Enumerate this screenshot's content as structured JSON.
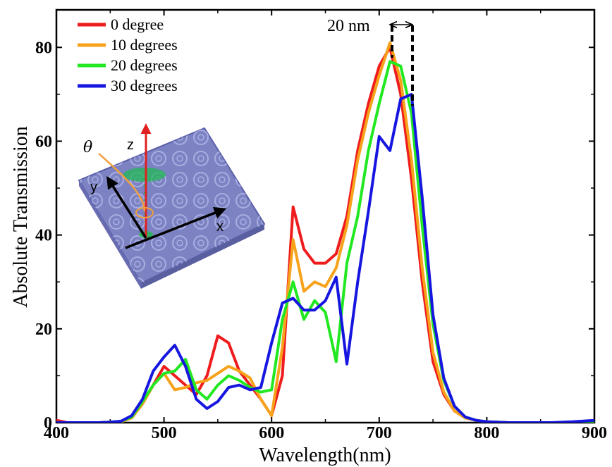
{
  "chart_data": {
    "type": "line",
    "title": "",
    "xlabel": "Wavelength(nm)",
    "ylabel": "Absolute Transmission",
    "xlim": [
      400,
      900
    ],
    "ylim": [
      0,
      88
    ],
    "xticks": [
      400,
      500,
      600,
      700,
      800,
      900
    ],
    "yticks": [
      0,
      20,
      40,
      60,
      80
    ],
    "grid": false,
    "legend_position": "top-left",
    "series": [
      {
        "name": "0 degree",
        "color": "#ee1c1c",
        "x": [
          400,
          410,
          420,
          430,
          440,
          450,
          460,
          470,
          480,
          490,
          500,
          510,
          520,
          530,
          540,
          550,
          560,
          570,
          580,
          590,
          600,
          610,
          620,
          630,
          640,
          650,
          660,
          670,
          680,
          690,
          700,
          710,
          720,
          730,
          740,
          750,
          760,
          770,
          780,
          790,
          800,
          820,
          840,
          860,
          880,
          900
        ],
        "y": [
          0.5,
          0,
          0,
          0,
          0,
          0.1,
          0.2,
          1,
          4,
          8,
          12,
          10,
          8,
          6,
          10,
          18.5,
          17,
          11,
          8,
          5,
          1.5,
          10,
          46,
          37,
          34,
          34,
          36,
          44,
          58,
          68,
          76,
          80,
          70,
          52,
          30,
          13,
          6,
          2.5,
          1,
          0.5,
          0.2,
          0,
          0,
          0,
          0,
          0.2
        ]
      },
      {
        "name": "10 degrees",
        "color": "#f7a21b",
        "x": [
          400,
          410,
          420,
          430,
          440,
          450,
          460,
          470,
          480,
          490,
          500,
          510,
          520,
          530,
          540,
          550,
          560,
          570,
          580,
          590,
          600,
          610,
          620,
          630,
          640,
          650,
          660,
          670,
          680,
          690,
          700,
          710,
          720,
          730,
          740,
          750,
          760,
          770,
          780,
          790,
          800,
          820,
          840,
          860,
          880,
          900
        ],
        "y": [
          0,
          0,
          0,
          0,
          0,
          0.1,
          0.2,
          1,
          4,
          8,
          10.5,
          7,
          7.5,
          8.5,
          9,
          10.5,
          12,
          11,
          9.5,
          5,
          1.5,
          16,
          39,
          28,
          30,
          29,
          33,
          42,
          56,
          66,
          74,
          81,
          73,
          56,
          33,
          15,
          6.5,
          2.5,
          1,
          0.5,
          0.2,
          0,
          0,
          0,
          0,
          0.2
        ]
      },
      {
        "name": "20 degrees",
        "color": "#22e822",
        "x": [
          400,
          410,
          420,
          430,
          440,
          450,
          460,
          470,
          480,
          490,
          500,
          510,
          520,
          530,
          540,
          550,
          560,
          570,
          580,
          590,
          600,
          610,
          620,
          630,
          640,
          650,
          660,
          670,
          680,
          690,
          700,
          710,
          720,
          730,
          740,
          750,
          760,
          770,
          780,
          790,
          800,
          820,
          840,
          860,
          880,
          900
        ],
        "y": [
          0,
          0,
          0,
          0,
          0,
          0.1,
          0.3,
          1.2,
          4.5,
          8,
          10.5,
          11,
          13.5,
          7,
          5,
          8,
          10,
          9,
          7.5,
          6.5,
          7,
          22,
          30,
          22,
          26,
          23.5,
          13,
          34,
          44,
          58,
          68,
          77,
          76,
          66,
          42,
          21,
          9,
          3.5,
          1.2,
          0.5,
          0.2,
          0,
          0,
          0,
          0,
          0.2
        ]
      },
      {
        "name": "30 degrees",
        "color": "#1616e0",
        "x": [
          400,
          410,
          420,
          430,
          440,
          450,
          460,
          470,
          480,
          490,
          500,
          510,
          520,
          530,
          540,
          550,
          560,
          570,
          580,
          590,
          600,
          610,
          620,
          630,
          640,
          650,
          660,
          670,
          680,
          690,
          700,
          710,
          720,
          730,
          740,
          750,
          760,
          770,
          780,
          790,
          800,
          820,
          840,
          860,
          880,
          900
        ],
        "y": [
          0,
          0,
          0,
          0,
          0,
          0.1,
          0.3,
          1.5,
          5,
          11,
          14,
          16.5,
          12,
          5,
          3,
          4.5,
          7.5,
          8,
          7,
          7.5,
          17,
          25.5,
          26.5,
          24,
          24,
          26,
          31,
          12.5,
          30,
          45,
          61,
          58,
          69,
          70,
          48,
          23,
          9.5,
          3.5,
          1.2,
          0.5,
          0.2,
          0,
          0,
          0,
          0.2,
          0.5
        ]
      }
    ],
    "annotations": [
      {
        "text": "20 nm",
        "type": "double-arrow",
        "from_x": 710,
        "to_x": 730
      }
    ],
    "inset": {
      "labels": {
        "theta": "θ",
        "z": "z",
        "y": "y",
        "x": "x"
      },
      "colors": {
        "plate": "#7c82c2",
        "z_arrow": "#e02020",
        "theta_arc": "#f0a040",
        "beam": "#22b855"
      }
    }
  }
}
